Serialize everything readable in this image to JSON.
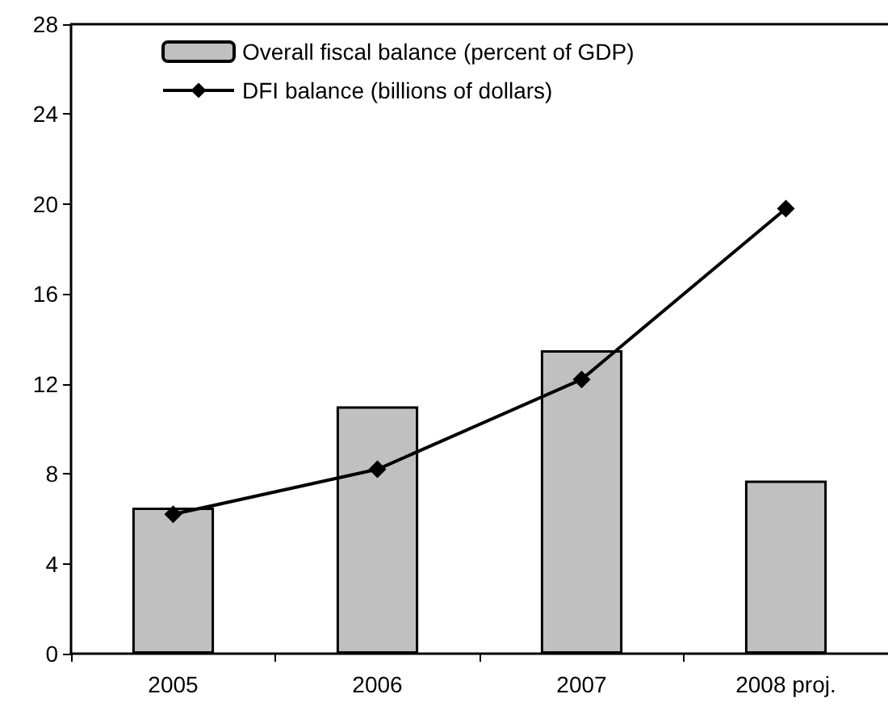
{
  "chart_data": {
    "type": "bar",
    "categories": [
      "2005",
      "2006",
      "2007",
      "2008 proj."
    ],
    "series": [
      {
        "name": "Overall fiscal balance (percent of GDP)",
        "color": "#c0c0c0",
        "values": [
          6.5,
          11.0,
          13.5,
          7.7
        ]
      },
      {
        "name": "DFI balance (billions of dollars)",
        "type": "line",
        "color": "#000000",
        "values": [
          6.2,
          8.2,
          12.2,
          19.8
        ]
      }
    ],
    "ylim": [
      0,
      28
    ],
    "yticks": [
      0,
      4,
      8,
      12,
      16,
      20,
      24,
      28
    ],
    "grid": false,
    "legend": "top left",
    "marker": "diamond",
    "line_style": "solid"
  }
}
